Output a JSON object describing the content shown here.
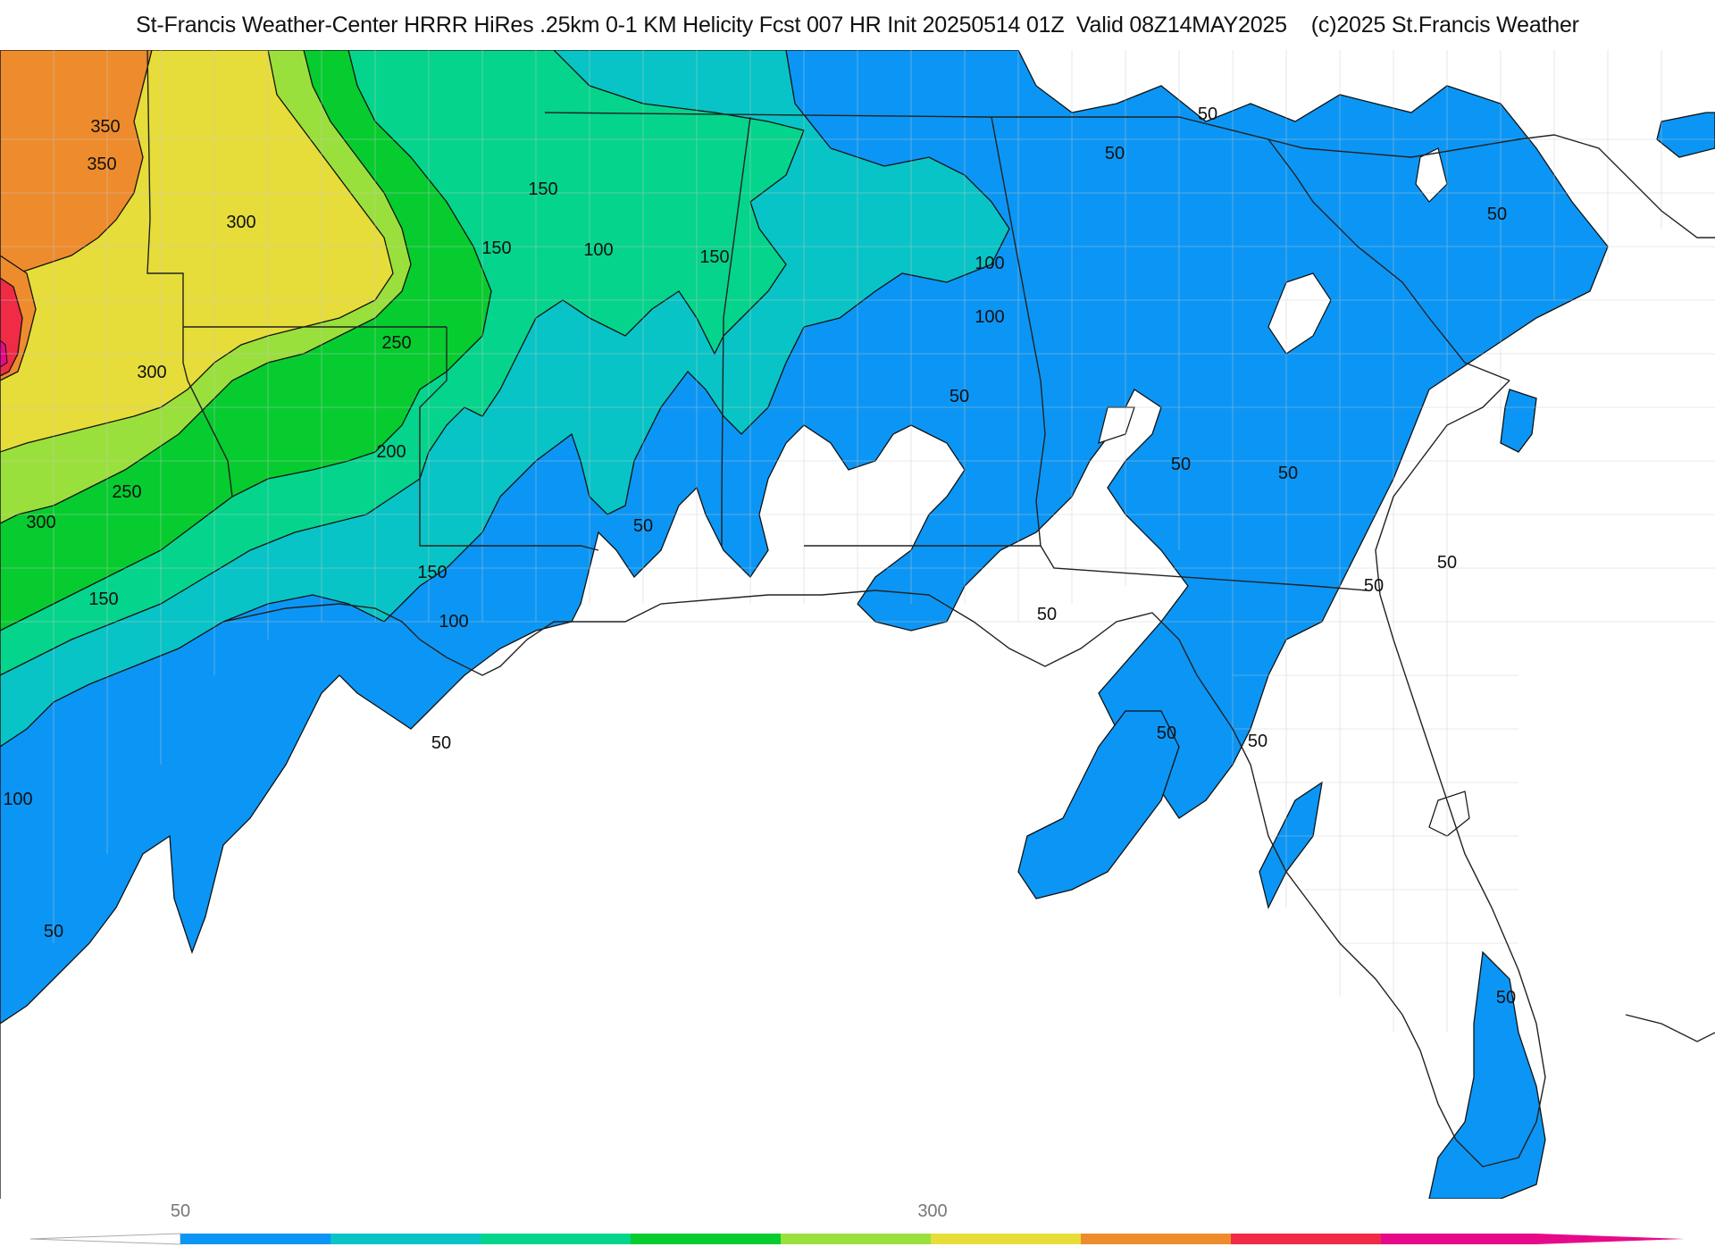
{
  "title": "St-Francis Weather-Center HRRR HiRes .25km 0-1 KM Helicity Fcst 007 HR Init 20250514 01Z  Valid 08Z14MAY2025    (c)2025 St.Francis Weather",
  "colors": {
    "background": "#ffffff",
    "band_50": "#0b96f5",
    "band_100": "#08c4c6",
    "band_150": "#05d48c",
    "band_200": "#07cc2f",
    "band_250": "#9ae03c",
    "band_300": "#e6dd3a",
    "band_350": "#ee8c2d",
    "band_400": "#ef2b45",
    "band_450": "#e60a8a",
    "state_line": "#222222",
    "county_line": "#c9c9c9"
  },
  "legend": {
    "tick_labels": [
      "50",
      "300"
    ],
    "bands": [
      "#0b96f5",
      "#08c4c6",
      "#05d48c",
      "#07cc2f",
      "#9ae03c",
      "#e6dd3a",
      "#ee8c2d",
      "#ef2b45",
      "#e60a8a"
    ]
  },
  "contour_labels": [
    {
      "text": "350"
    },
    {
      "text": "350"
    },
    {
      "text": "300"
    },
    {
      "text": "300"
    },
    {
      "text": "300"
    },
    {
      "text": "250"
    },
    {
      "text": "250"
    },
    {
      "text": "200"
    },
    {
      "text": "150"
    },
    {
      "text": "150"
    },
    {
      "text": "150"
    },
    {
      "text": "150"
    },
    {
      "text": "150"
    },
    {
      "text": "100"
    },
    {
      "text": "100"
    },
    {
      "text": "100"
    },
    {
      "text": "100"
    },
    {
      "text": "100"
    },
    {
      "text": "50"
    },
    {
      "text": "50"
    },
    {
      "text": "50"
    },
    {
      "text": "50"
    },
    {
      "text": "50"
    },
    {
      "text": "50"
    },
    {
      "text": "50"
    },
    {
      "text": "50"
    },
    {
      "text": "50"
    },
    {
      "text": "50"
    },
    {
      "text": "50"
    },
    {
      "text": "50"
    },
    {
      "text": "50"
    },
    {
      "text": "50"
    },
    {
      "text": "50"
    }
  ]
}
